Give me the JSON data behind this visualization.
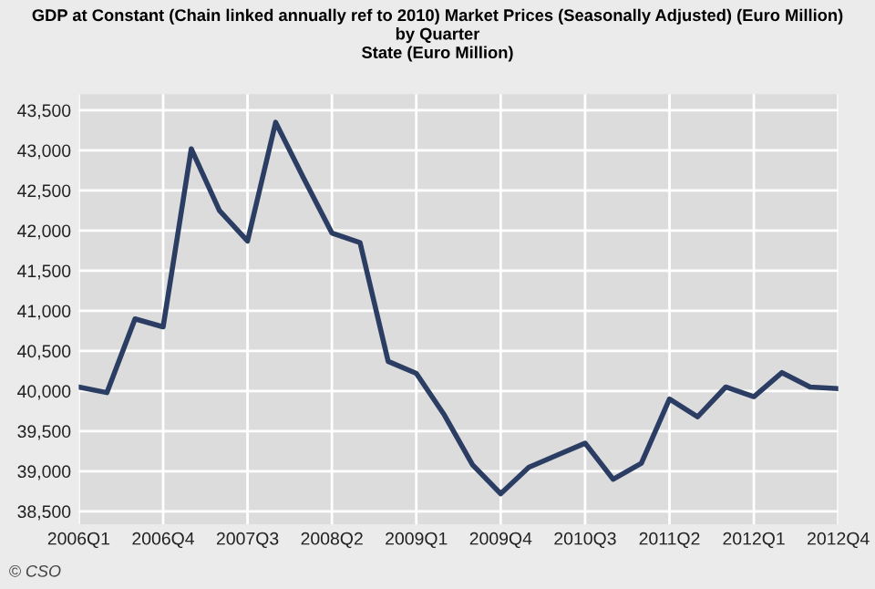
{
  "chart_data": {
    "type": "line",
    "title": "GDP at Constant (Chain linked annually ref to 2010) Market Prices (Seasonally Adjusted) (Euro Million)\nby Quarter\nState (Euro Million)",
    "categories": [
      "2006Q1",
      null,
      null,
      "2006Q4",
      null,
      null,
      "2007Q3",
      null,
      null,
      "2008Q2",
      null,
      null,
      "2009Q1",
      null,
      null,
      "2009Q4",
      null,
      null,
      "2010Q3",
      null,
      null,
      "2011Q2",
      null,
      null,
      "2012Q1",
      null,
      null,
      "2012Q4"
    ],
    "series": [
      {
        "color": "#2b3d63",
        "values": [
          40050,
          39980,
          40900,
          40800,
          43020,
          42250,
          41870,
          43350,
          42650,
          41970,
          41850,
          40370,
          40220,
          39700,
          39080,
          38720,
          39050,
          39200,
          39350,
          38900,
          39100,
          39900,
          39680,
          40050,
          39930,
          40230,
          40050,
          40030
        ]
      }
    ],
    "ylim": [
      38340,
      43700
    ],
    "yticks": [
      {
        "value": 38500,
        "label": "38,500"
      },
      {
        "value": 39000,
        "label": "39,000"
      },
      {
        "value": 39500,
        "label": "39,500"
      },
      {
        "value": 40000,
        "label": "40,000"
      },
      {
        "value": 40500,
        "label": "40,500"
      },
      {
        "value": 41000,
        "label": "41,000"
      },
      {
        "value": 41500,
        "label": "41,500"
      },
      {
        "value": 42000,
        "label": "42,000"
      },
      {
        "value": 42500,
        "label": "42,500"
      },
      {
        "value": 43000,
        "label": "43,000"
      },
      {
        "value": 43500,
        "label": "43,500"
      }
    ],
    "grid": true,
    "marker": "none",
    "line_style": "solid",
    "annotations": [
      "© CSO"
    ]
  }
}
